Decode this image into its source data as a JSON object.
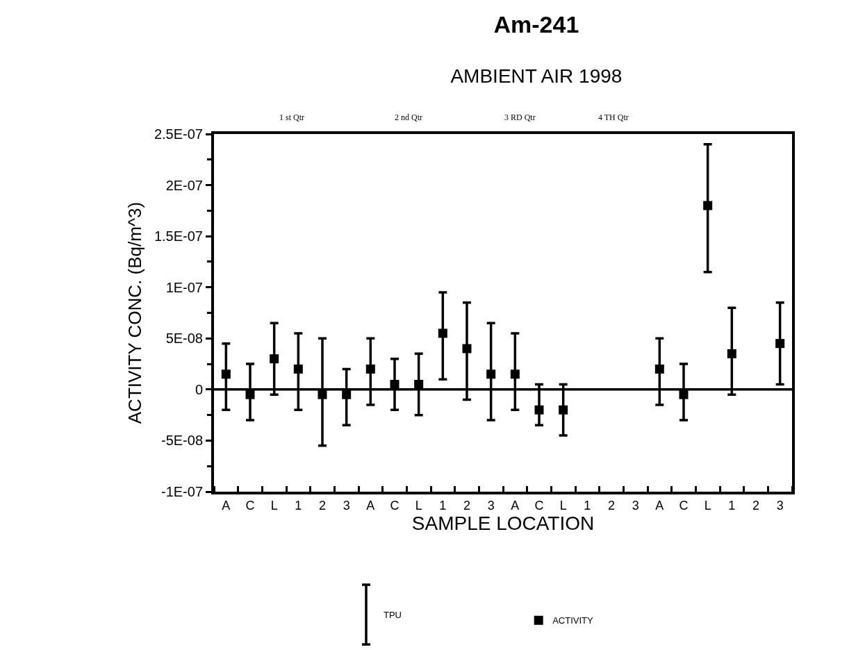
{
  "chart_data": {
    "type": "scatter",
    "title": "Am-241",
    "subtitle": "AMBIENT AIR 1998",
    "xlabel": "SAMPLE LOCATION",
    "ylabel": "ACTIVITY CONC. (Bq/m^3)",
    "categories": [
      "A",
      "C",
      "L",
      "1",
      "2",
      "3",
      "A",
      "C",
      "L",
      "1",
      "2",
      "3",
      "A",
      "C",
      "L",
      "1",
      "2",
      "3",
      "A",
      "C",
      "L",
      "1",
      "2",
      "3"
    ],
    "series": [
      {
        "name": "ACTIVITY",
        "color": "#000000",
        "values": [
          1.5e-08,
          -5e-09,
          3e-08,
          2e-08,
          -5e-09,
          -5e-09,
          2e-08,
          5e-09,
          5e-09,
          5.5e-08,
          4e-08,
          1.5e-08,
          1.5e-08,
          -2e-08,
          -2e-08,
          null,
          null,
          null,
          2e-08,
          -5e-09,
          1.8e-07,
          3.5e-08,
          null,
          4.5e-08
        ],
        "errors": [
          [
            -2e-08,
            4.5e-08
          ],
          [
            -3e-08,
            2.5e-08
          ],
          [
            -5e-09,
            6.5e-08
          ],
          [
            -2e-08,
            5.5e-08
          ],
          [
            -5.5e-08,
            5e-08
          ],
          [
            -3.5e-08,
            2e-08
          ],
          [
            -1.5e-08,
            5e-08
          ],
          [
            -2e-08,
            3e-08
          ],
          [
            -2.5e-08,
            3.5e-08
          ],
          [
            1e-08,
            9.5e-08
          ],
          [
            -1e-08,
            8.5e-08
          ],
          [
            -3e-08,
            6.5e-08
          ],
          [
            -2e-08,
            5.5e-08
          ],
          [
            -3.5e-08,
            5e-09
          ],
          [
            -4.5e-08,
            5e-09
          ],
          null,
          null,
          null,
          [
            -1.5e-08,
            5e-08
          ],
          [
            -3e-08,
            2.5e-08
          ],
          [
            1.15e-07,
            2.4e-07
          ],
          [
            -5e-09,
            8e-08
          ],
          null,
          [
            5e-09,
            8.5e-08
          ]
        ]
      }
    ],
    "ref_lines": [
      {
        "axis": "y",
        "value": 0
      }
    ],
    "ylim": [
      -1e-07,
      2.5e-07
    ],
    "yticks": [
      {
        "value": -1e-07,
        "label": "-1E-07"
      },
      {
        "value": -5e-08,
        "label": "-5E-08"
      },
      0,
      {
        "value": 5e-08,
        "label": "5E-08"
      },
      {
        "value": 1e-07,
        "label": "1E-07"
      },
      {
        "value": 1.5e-07,
        "label": "1.5E-07"
      },
      {
        "value": 2e-07,
        "label": "2E-07"
      },
      {
        "value": 2.5e-07,
        "label": "2.5E-07"
      }
    ],
    "annotations": [
      "1 st Qtr",
      "2 nd Qtr",
      "3 RD Qtr",
      "4 TH Qtr",
      "TPU"
    ],
    "marker": "square",
    "grid": false,
    "legend": "bottom"
  }
}
